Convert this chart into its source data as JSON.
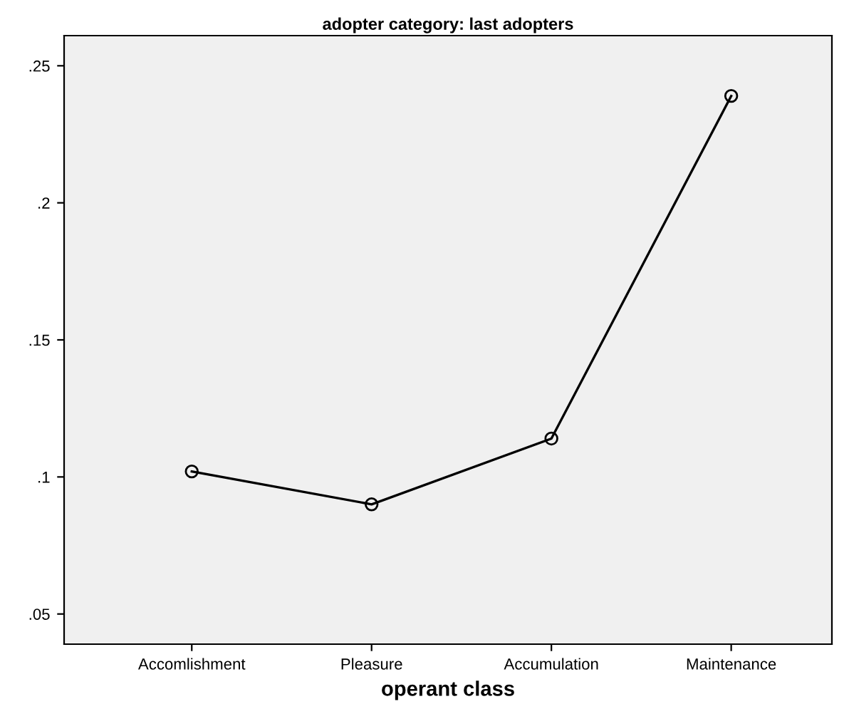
{
  "chart_data": {
    "type": "line",
    "title": "adopter category: last adopters",
    "xlabel": "operant class",
    "categories": [
      "Accomlishment",
      "Pleasure",
      "Accumulation",
      "Maintenance"
    ],
    "series": [
      {
        "color": "#000000",
        "values": [
          0.102,
          0.09,
          0.114,
          0.239
        ]
      }
    ],
    "ylim": [
      0.039,
      0.261
    ],
    "yticks": [
      {
        "value": 0.05,
        "label": ".05"
      },
      {
        "value": 0.1,
        "label": ".1"
      },
      {
        "value": 0.15,
        "label": ".15"
      },
      {
        "value": 0.2,
        "label": ".2"
      },
      {
        "value": 0.25,
        "label": ".25"
      }
    ],
    "marker": "circle",
    "line_style": "solid",
    "grid": false,
    "legend": false
  }
}
